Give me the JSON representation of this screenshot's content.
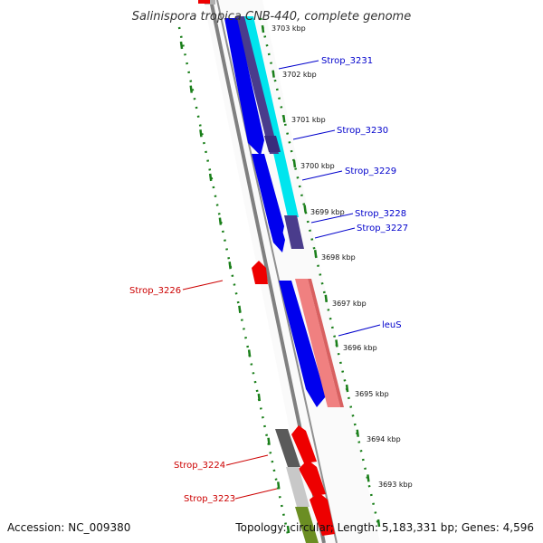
{
  "title": "Salinispora tropica CNB-440, complete genome",
  "accession": "Accession: NC_009380",
  "topology": "Topology: circular; Length: 5,183,331 bp; Genes: 4,596",
  "ticks": [
    {
      "label": "3703 kbp"
    },
    {
      "label": "3702 kbp"
    },
    {
      "label": "3701 kbp"
    },
    {
      "label": "3700 kbp"
    },
    {
      "label": "3699 kbp"
    },
    {
      "label": "3698 kbp"
    },
    {
      "label": "3697 kbp"
    },
    {
      "label": "3696 kbp"
    },
    {
      "label": "3695 kbp"
    },
    {
      "label": "3694 kbp"
    },
    {
      "label": "3693 kbp"
    }
  ],
  "gene_labels": [
    {
      "text": "Strop_3231",
      "color": "#0000cc"
    },
    {
      "text": "Strop_3230",
      "color": "#0000cc"
    },
    {
      "text": "Strop_3229",
      "color": "#0000cc"
    },
    {
      "text": "Strop_3228",
      "color": "#0000cc"
    },
    {
      "text": "Strop_3227",
      "color": "#0000cc"
    },
    {
      "text": "leuS",
      "color": "#0000cc"
    },
    {
      "text": "Strop_3226",
      "color": "#cc0000"
    },
    {
      "text": "Strop_3224",
      "color": "#cc0000"
    },
    {
      "text": "Strop_3223",
      "color": "#cc0000"
    }
  ],
  "colors": {
    "forward_cds": "#0000ee",
    "reverse_cds": "#ee0000",
    "dark_feature": "#4a3c8c",
    "cyan_feature": "#00e5ee",
    "pink_feature": "#f08080",
    "backbone": "#808080",
    "tick_green": "#1a7f1a",
    "olive_feature": "#6b8e23",
    "gray_feature": "#5a5a5a"
  }
}
